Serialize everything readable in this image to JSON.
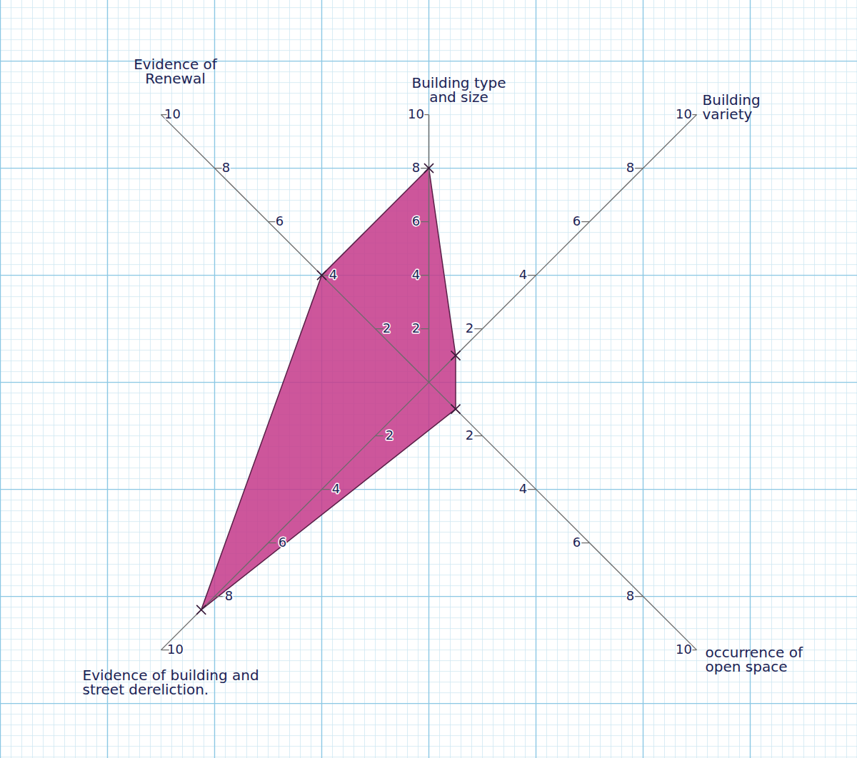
{
  "chart_data": {
    "type": "radar",
    "axes": [
      "Evidence of Renewal",
      "Building type and size",
      "Building variety",
      "occurrence of open space",
      "Evidence of building and street dereliction."
    ],
    "values": [
      4,
      8,
      1,
      1,
      8.5
    ],
    "rlim": [
      0,
      10
    ],
    "rticks": [
      2,
      4,
      6,
      8,
      10
    ],
    "color": "#c4388a",
    "marker": "x",
    "grid": true
  }
}
